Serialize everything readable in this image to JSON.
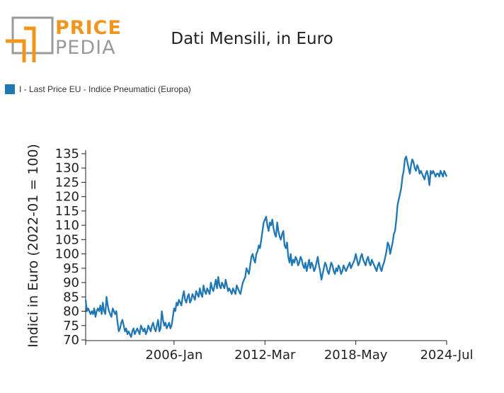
{
  "logo": {
    "line1": "PRICE",
    "line2": "PEDIA",
    "accent_color": "#f0961e",
    "frame_color": "#9a9a9a"
  },
  "chart_data": {
    "type": "line",
    "title": "Dati Mensili, in Euro",
    "ylabel": "Indici in Euro (2022-01 = 100)",
    "xlabel": "",
    "ylim": [
      70,
      135
    ],
    "yticks": [
      70,
      75,
      80,
      85,
      90,
      95,
      100,
      105,
      110,
      115,
      120,
      125,
      130,
      135
    ],
    "xlim": [
      "2000-01",
      "2024-07"
    ],
    "xticks": [
      "2006-Jan",
      "2012-Mar",
      "2018-May",
      "2024-Jul"
    ],
    "legend_position": "top-left",
    "series": [
      {
        "name": "I - Last Price EU - Indice Pneumatici (Europa)",
        "color": "#1f77b4",
        "start": "2000-01",
        "values": [
          84,
          80,
          81,
          80,
          79,
          80,
          79,
          81,
          78,
          80,
          81,
          80,
          82,
          79,
          83,
          80,
          79,
          85,
          82,
          80,
          79,
          78,
          81,
          80,
          79,
          80,
          76,
          73,
          74,
          76,
          77,
          75,
          73,
          74,
          72,
          73,
          72,
          71,
          73,
          74,
          72,
          73,
          74,
          73,
          72,
          75,
          74,
          73,
          74,
          72,
          73,
          75,
          74,
          73,
          75,
          76,
          74,
          73,
          75,
          77,
          73,
          74,
          80,
          77,
          75,
          76,
          74,
          75,
          76,
          74,
          75,
          78,
          81,
          80,
          83,
          82,
          84,
          83,
          82,
          85,
          87,
          84,
          83,
          85,
          86,
          83,
          84,
          86,
          85,
          84,
          87,
          86,
          85,
          88,
          86,
          85,
          89,
          87,
          86,
          88,
          87,
          86,
          90,
          88,
          87,
          89,
          91,
          88,
          92,
          89,
          88,
          90,
          89,
          88,
          91,
          89,
          87,
          88,
          87,
          86,
          88,
          87,
          86,
          89,
          88,
          87,
          86,
          88,
          90,
          91,
          92,
          95,
          94,
          93,
          96,
          99,
          100,
          98,
          97,
          100,
          101,
          103,
          102,
          105,
          108,
          111,
          112,
          113,
          110,
          108,
          111,
          110,
          112,
          109,
          107,
          106,
          111,
          108,
          106,
          105,
          107,
          108,
          103,
          102,
          104,
          99,
          97,
          100,
          96,
          98,
          97,
          99,
          98,
          96,
          97,
          99,
          98,
          96,
          95,
          97,
          94,
          96,
          98,
          95,
          97,
          96,
          94,
          95,
          97,
          99,
          96,
          94,
          91,
          93,
          95,
          97,
          96,
          94,
          93,
          95,
          97,
          96,
          94,
          93,
          95,
          94,
          96,
          95,
          93,
          94,
          96,
          95,
          94,
          95,
          96,
          97,
          95,
          96,
          97,
          98,
          100,
          98,
          96,
          97,
          99,
          100,
          98,
          97,
          96,
          98,
          99,
          97,
          96,
          98,
          97,
          96,
          95,
          94,
          96,
          97,
          95,
          94,
          96,
          97,
          99,
          101,
          104,
          103,
          100,
          102,
          104,
          107,
          108,
          112,
          117,
          119,
          121,
          123,
          127,
          129,
          133,
          134,
          132,
          130,
          128,
          131,
          133,
          132,
          130,
          129,
          131,
          130,
          128,
          129,
          128,
          127,
          126,
          128,
          129,
          127,
          124,
          129,
          128,
          129,
          128,
          127,
          128,
          128,
          127,
          129,
          128,
          127,
          129,
          128,
          127
        ]
      }
    ]
  }
}
